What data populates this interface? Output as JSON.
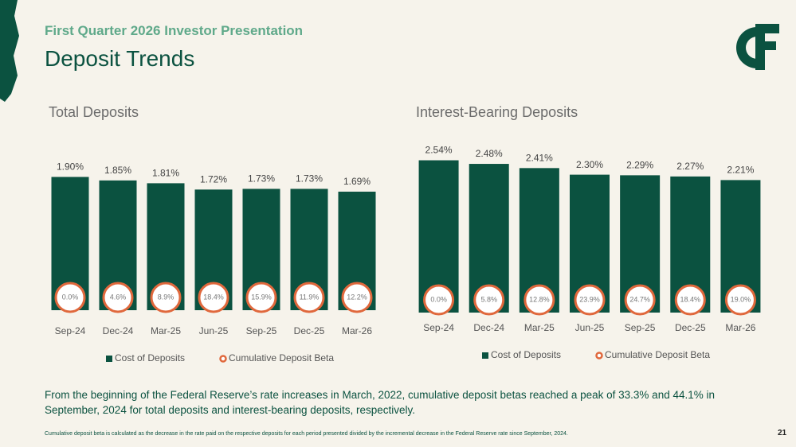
{
  "header": {
    "subtitle": "First Quarter 2026 Investor Presentation",
    "title": "Deposit Trends"
  },
  "chart_data": [
    {
      "type": "bar",
      "title": "Total Deposits",
      "categories": [
        "Sep-24",
        "Dec-24",
        "Mar-25",
        "Jun-25",
        "Sep-25",
        "Dec-25",
        "Mar-26"
      ],
      "series": [
        {
          "name": "Cost of Deposits",
          "color": "#0b5240",
          "values": [
            1.9,
            1.85,
            1.81,
            1.72,
            1.73,
            1.73,
            1.69
          ],
          "value_labels": [
            "1.90%",
            "1.85%",
            "1.81%",
            "1.72%",
            "1.73%",
            "1.73%",
            "1.69%"
          ]
        },
        {
          "name": "Cumulative Deposit Beta",
          "color": "#e0683c",
          "values": [
            0.0,
            4.6,
            8.9,
            18.4,
            15.9,
            11.9,
            12.2
          ],
          "value_labels": [
            "0.0%",
            "4.6%",
            "8.9%",
            "18.4%",
            "15.9%",
            "11.9%",
            "12.2%"
          ]
        }
      ],
      "ylim": [
        0,
        2.2
      ]
    },
    {
      "type": "bar",
      "title": "Interest-Bearing Deposits",
      "categories": [
        "Sep-24",
        "Dec-24",
        "Mar-25",
        "Jun-25",
        "Sep-25",
        "Dec-25",
        "Mar-26"
      ],
      "series": [
        {
          "name": "Cost of Deposits",
          "color": "#0b5240",
          "values": [
            2.54,
            2.48,
            2.41,
            2.3,
            2.29,
            2.27,
            2.21
          ],
          "value_labels": [
            "2.54%",
            "2.48%",
            "2.41%",
            "2.30%",
            "2.29%",
            "2.27%",
            "2.21%"
          ]
        },
        {
          "name": "Cumulative Deposit Beta",
          "color": "#e0683c",
          "values": [
            0.0,
            5.8,
            12.8,
            23.9,
            24.7,
            18.4,
            19.0
          ],
          "value_labels": [
            "0.0%",
            "5.8%",
            "12.8%",
            "23.9%",
            "24.7%",
            "18.4%",
            "19.0%"
          ]
        }
      ],
      "ylim": [
        0,
        2.6
      ]
    }
  ],
  "summary": "From the beginning of the Federal Reserve’s rate increases in March, 2022, cumulative deposit betas reached a peak of 33.3% and 44.1% in September, 2024 for total deposits and interest-bearing deposits, respectively.",
  "footnote": "Cumulative deposit beta is calculated as the decrease in the rate paid on the respective deposits for each period presented divided by the incremental decrease in the Federal Reserve rate since September, 2024.",
  "page_number": "21"
}
